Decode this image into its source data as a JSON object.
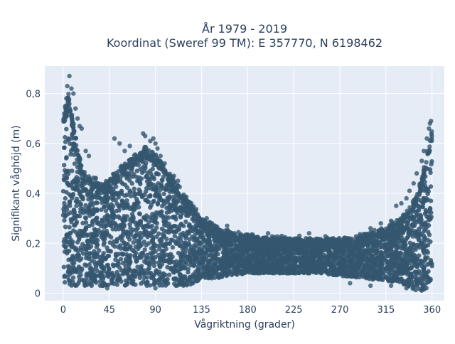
{
  "chart_data": {
    "type": "scatter",
    "title_line1": "År 1979 - 2019",
    "title_line2": "Koordinat (Sweref 99 TM): E 357770, N 6198462",
    "xlabel": "Vågriktning (grader)",
    "ylabel": "Signifikant våghöjd (m)",
    "xlim": [
      -18,
      372
    ],
    "ylim": [
      -0.03,
      0.91
    ],
    "xticks": [
      0,
      45,
      90,
      135,
      180,
      225,
      270,
      315,
      360
    ],
    "xtick_labels": [
      "0",
      "45",
      "90",
      "135",
      "180",
      "225",
      "270",
      "315",
      "360"
    ],
    "yticks": [
      0,
      0.2,
      0.4,
      0.6,
      0.8
    ],
    "ytick_labels": [
      "0",
      "0,2",
      "0,4",
      "0,6",
      "0,8"
    ],
    "grid": true,
    "marker_color": "#34566e",
    "plot_bgcolor": "#e5ecf6",
    "envelope": {
      "note": "Dense point cloud: min and max significant wave height per direction",
      "x": [
        0,
        5,
        10,
        15,
        20,
        30,
        40,
        50,
        60,
        70,
        80,
        90,
        100,
        110,
        120,
        130,
        135,
        150,
        180,
        200,
        225,
        250,
        270,
        290,
        315,
        330,
        340,
        345,
        350,
        355,
        360
      ],
      "y_max": [
        0.7,
        0.8,
        0.68,
        0.56,
        0.48,
        0.46,
        0.44,
        0.48,
        0.52,
        0.55,
        0.58,
        0.56,
        0.5,
        0.44,
        0.38,
        0.33,
        0.3,
        0.26,
        0.23,
        0.22,
        0.22,
        0.22,
        0.22,
        0.23,
        0.26,
        0.3,
        0.35,
        0.4,
        0.46,
        0.56,
        0.66
      ],
      "y_min": [
        0.04,
        0.03,
        0.03,
        0.03,
        0.03,
        0.03,
        0.03,
        0.03,
        0.03,
        0.03,
        0.03,
        0.03,
        0.03,
        0.03,
        0.03,
        0.04,
        0.06,
        0.06,
        0.08,
        0.08,
        0.08,
        0.08,
        0.07,
        0.06,
        0.05,
        0.04,
        0.02,
        0.01,
        0.01,
        0.02,
        0.04
      ]
    },
    "outliers": [
      {
        "x": 6,
        "y": 0.87
      },
      {
        "x": 4,
        "y": 0.83
      },
      {
        "x": 8,
        "y": 0.82
      },
      {
        "x": 10,
        "y": 0.8
      },
      {
        "x": 3,
        "y": 0.78
      },
      {
        "x": 2,
        "y": 0.75
      },
      {
        "x": 12,
        "y": 0.74
      },
      {
        "x": 1,
        "y": 0.72
      },
      {
        "x": 14,
        "y": 0.7
      },
      {
        "x": 16,
        "y": 0.67
      },
      {
        "x": 18,
        "y": 0.66
      },
      {
        "x": 22,
        "y": 0.57
      },
      {
        "x": 25,
        "y": 0.55
      },
      {
        "x": 50,
        "y": 0.62
      },
      {
        "x": 55,
        "y": 0.6
      },
      {
        "x": 60,
        "y": 0.57
      },
      {
        "x": 65,
        "y": 0.59
      },
      {
        "x": 78,
        "y": 0.64
      },
      {
        "x": 80,
        "y": 0.63
      },
      {
        "x": 85,
        "y": 0.61
      },
      {
        "x": 88,
        "y": 0.62
      },
      {
        "x": 90,
        "y": 0.6
      },
      {
        "x": 92,
        "y": 0.58
      },
      {
        "x": 95,
        "y": 0.55
      },
      {
        "x": 99,
        "y": 0.52
      },
      {
        "x": 108,
        "y": 0.47
      },
      {
        "x": 112,
        "y": 0.45
      },
      {
        "x": 125,
        "y": 0.36
      },
      {
        "x": 140,
        "y": 0.3
      },
      {
        "x": 160,
        "y": 0.27
      },
      {
        "x": 200,
        "y": 0.24
      },
      {
        "x": 240,
        "y": 0.24
      },
      {
        "x": 300,
        "y": 0.26
      },
      {
        "x": 310,
        "y": 0.28
      },
      {
        "x": 320,
        "y": 0.29
      },
      {
        "x": 325,
        "y": 0.35
      },
      {
        "x": 330,
        "y": 0.36
      },
      {
        "x": 335,
        "y": 0.38
      },
      {
        "x": 338,
        "y": 0.41
      },
      {
        "x": 342,
        "y": 0.44
      },
      {
        "x": 345,
        "y": 0.48
      },
      {
        "x": 350,
        "y": 0.53
      },
      {
        "x": 352,
        "y": 0.57
      },
      {
        "x": 355,
        "y": 0.62
      },
      {
        "x": 357,
        "y": 0.66
      },
      {
        "x": 358,
        "y": 0.68
      },
      {
        "x": 359,
        "y": 0.69
      },
      {
        "x": 280,
        "y": 0.04
      },
      {
        "x": 300,
        "y": 0.03
      },
      {
        "x": 320,
        "y": 0.03
      },
      {
        "x": 335,
        "y": 0.02
      },
      {
        "x": 43,
        "y": 0.02
      },
      {
        "x": 90,
        "y": 0.02
      },
      {
        "x": 110,
        "y": 0.03
      }
    ]
  }
}
